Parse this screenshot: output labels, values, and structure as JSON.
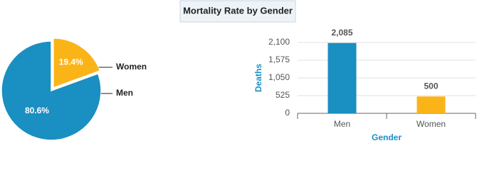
{
  "title": "Mortality Rate by Gender",
  "chart_data": [
    {
      "type": "pie",
      "categories": [
        "Women",
        "Men"
      ],
      "values": [
        19.4,
        80.6
      ],
      "value_labels": [
        "19.4%",
        "80.6%"
      ],
      "colors": [
        "#fbb418",
        "#1a8fc1"
      ],
      "exploded": [
        true,
        false
      ]
    },
    {
      "type": "bar",
      "categories": [
        "Men",
        "Women"
      ],
      "values": [
        2085,
        500
      ],
      "value_labels": [
        "2,085",
        "500"
      ],
      "colors": [
        "#1a8fc1",
        "#fbb418"
      ],
      "xlabel": "Gender",
      "ylabel": "Deaths",
      "ylim": [
        0,
        2100
      ],
      "yticks": [
        0,
        525,
        {
          "value": 1050,
          "label": "1,050"
        },
        {
          "value": 1575,
          "label": "1,575"
        },
        {
          "value": 2100,
          "label": "2,100"
        }
      ],
      "grid": true
    }
  ]
}
